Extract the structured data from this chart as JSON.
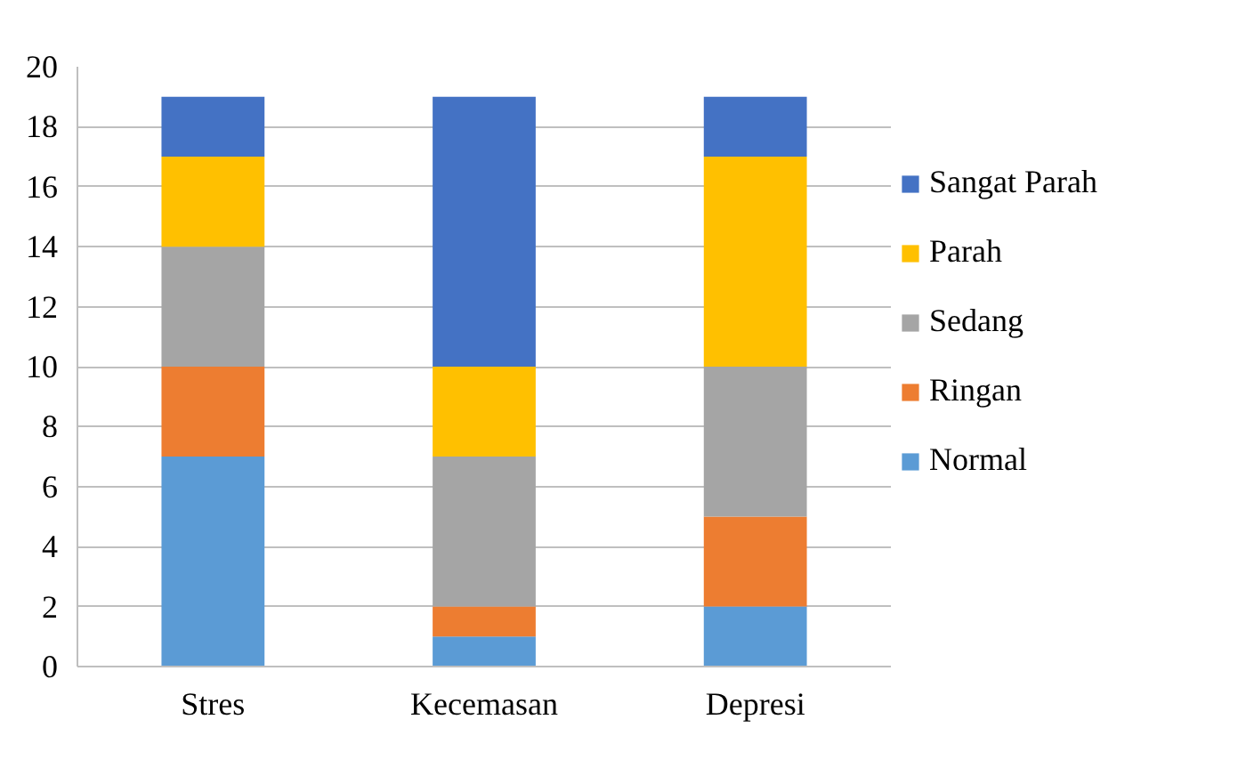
{
  "chart_data": {
    "type": "bar",
    "stacked": true,
    "categories": [
      "Stres",
      "Kecemasan",
      "Depresi"
    ],
    "series": [
      {
        "name": "Normal",
        "color": "#5b9bd5",
        "values": [
          7,
          1,
          2
        ]
      },
      {
        "name": "Ringan",
        "color": "#ed7d31",
        "values": [
          3,
          1,
          3
        ]
      },
      {
        "name": "Sedang",
        "color": "#a5a5a5",
        "values": [
          4,
          5,
          5
        ]
      },
      {
        "name": "Parah",
        "color": "#ffc000",
        "values": [
          3,
          3,
          7
        ]
      },
      {
        "name": "Sangat Parah",
        "color": "#4472c4",
        "values": [
          2,
          9,
          2
        ]
      }
    ],
    "ylim": [
      0,
      20
    ],
    "yticks": [
      0,
      2,
      4,
      6,
      8,
      10,
      12,
      14,
      16,
      18,
      20
    ],
    "grid": "y",
    "legend": "right"
  }
}
